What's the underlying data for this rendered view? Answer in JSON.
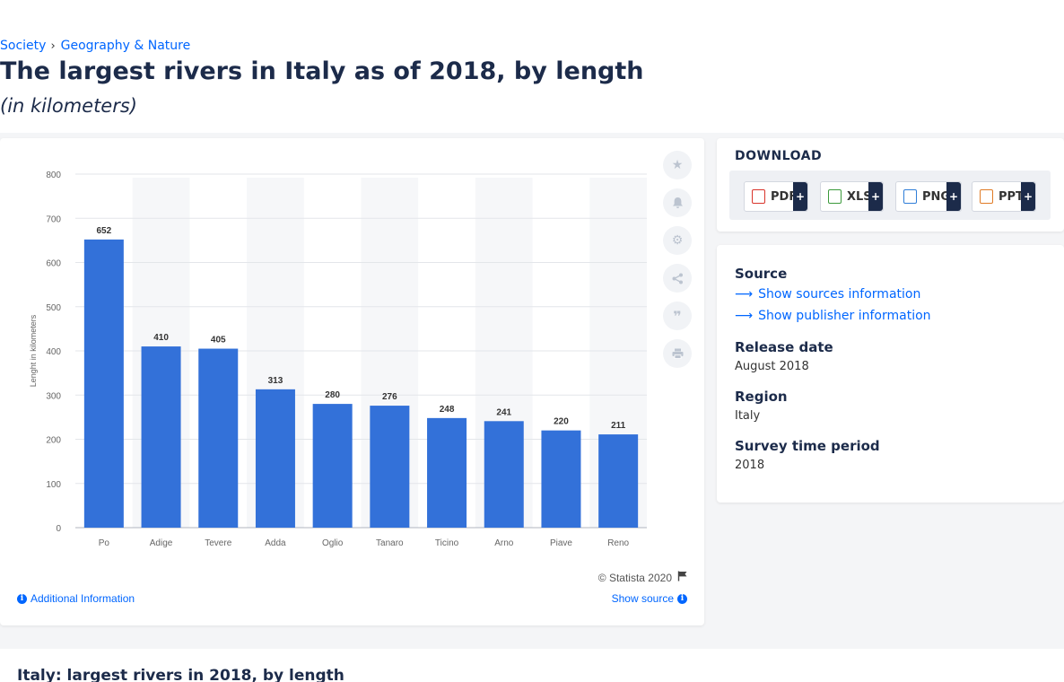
{
  "breadcrumb": {
    "items": [
      "Society",
      "Geography & Nature"
    ]
  },
  "page": {
    "title": "The largest rivers in Italy as of 2018, by length",
    "subtitle": "(in kilometers)"
  },
  "chart_data": {
    "type": "bar",
    "categories": [
      "Po",
      "Adige",
      "Tevere",
      "Adda",
      "Oglio",
      "Tanaro",
      "Ticino",
      "Arno",
      "Piave",
      "Reno"
    ],
    "values": [
      652,
      410,
      405,
      313,
      280,
      276,
      248,
      241,
      220,
      211
    ],
    "ylabel": "Lenght in kilometers",
    "ylim": [
      0,
      800
    ],
    "yticks": [
      "0",
      "100",
      "200",
      "300",
      "400",
      "500",
      "600",
      "700",
      "800"
    ],
    "bar_color": "#3371d9",
    "grid": true
  },
  "chart_footer": {
    "copyright": "© Statista 2020",
    "additional_info": "Additional Information",
    "show_source": "Show source"
  },
  "toolbar": {
    "icons": [
      "star-icon",
      "bell-icon",
      "gear-icon",
      "share-icon",
      "quote-icon",
      "print-icon"
    ]
  },
  "download": {
    "title": "DOWNLOAD",
    "formats": [
      {
        "label": "PDF",
        "color": "#d9342b"
      },
      {
        "label": "XLS",
        "color": "#3c9a3c"
      },
      {
        "label": "PNG",
        "color": "#2f7ed8"
      },
      {
        "label": "PPT",
        "color": "#e07b26"
      }
    ],
    "plus": "+"
  },
  "info": {
    "source_head": "Source",
    "show_sources": "Show sources information",
    "show_publisher": "Show publisher information",
    "release_head": "Release date",
    "release_val": "August 2018",
    "region_head": "Region",
    "region_val": "Italy",
    "survey_head": "Survey time period",
    "survey_val": "2018"
  },
  "bottom": {
    "title": "Italy: largest rivers in 2018, by length"
  }
}
